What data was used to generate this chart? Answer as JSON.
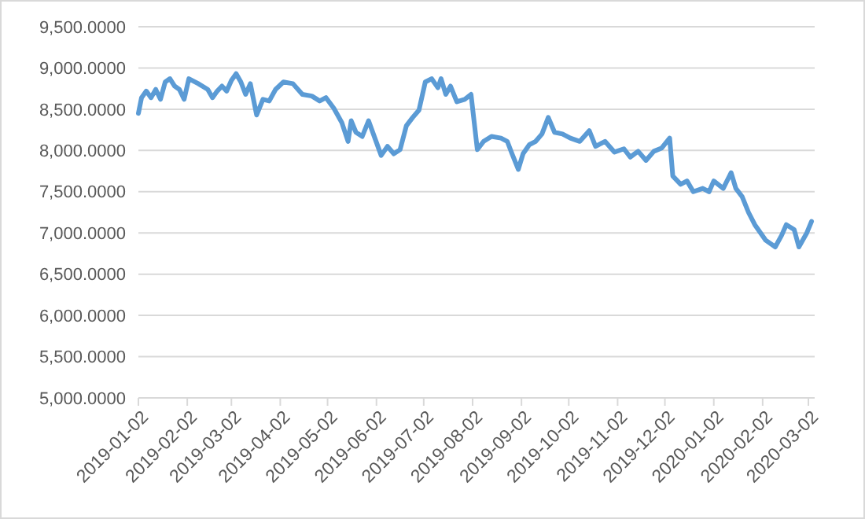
{
  "chart_data": {
    "type": "line",
    "x": [
      "2019-01-02",
      "2019-01-04",
      "2019-01-07",
      "2019-01-10",
      "2019-01-13",
      "2019-01-16",
      "2019-01-19",
      "2019-01-22",
      "2019-01-25",
      "2019-01-28",
      "2019-01-31",
      "2019-02-03",
      "2019-02-09",
      "2019-02-15",
      "2019-02-18",
      "2019-02-21",
      "2019-02-24",
      "2019-02-27",
      "2019-03-02",
      "2019-03-05",
      "2019-03-08",
      "2019-03-11",
      "2019-03-14",
      "2019-03-18",
      "2019-03-22",
      "2019-03-26",
      "2019-03-30",
      "2019-04-04",
      "2019-04-10",
      "2019-04-16",
      "2019-04-22",
      "2019-04-27",
      "2019-05-01",
      "2019-05-06",
      "2019-05-11",
      "2019-05-15",
      "2019-05-17",
      "2019-05-20",
      "2019-05-24",
      "2019-05-28",
      "2019-06-01",
      "2019-06-05",
      "2019-06-09",
      "2019-06-13",
      "2019-06-17",
      "2019-06-21",
      "2019-06-25",
      "2019-06-29",
      "2019-07-03",
      "2019-07-07",
      "2019-07-11",
      "2019-07-13",
      "2019-07-16",
      "2019-07-19",
      "2019-07-23",
      "2019-07-28",
      "2019-08-01",
      "2019-08-05",
      "2019-08-09",
      "2019-08-14",
      "2019-08-20",
      "2019-08-24",
      "2019-08-27",
      "2019-08-31",
      "2019-09-03",
      "2019-09-07",
      "2019-09-11",
      "2019-09-15",
      "2019-09-19",
      "2019-09-23",
      "2019-09-28",
      "2019-10-03",
      "2019-10-09",
      "2019-10-15",
      "2019-10-19",
      "2019-10-25",
      "2019-10-31",
      "2019-11-06",
      "2019-11-10",
      "2019-11-15",
      "2019-11-20",
      "2019-11-25",
      "2019-11-30",
      "2019-12-05",
      "2019-12-07",
      "2019-12-12",
      "2019-12-16",
      "2019-12-20",
      "2019-12-26",
      "2019-12-30",
      "2020-01-02",
      "2020-01-08",
      "2020-01-13",
      "2020-01-16",
      "2020-01-20",
      "2020-01-24",
      "2020-01-28",
      "2020-02-04",
      "2020-02-10",
      "2020-02-14",
      "2020-02-17",
      "2020-02-22",
      "2020-02-25",
      "2020-03-01",
      "2020-03-04"
    ],
    "series": [
      {
        "color": "#5b9bd5",
        "values": [
          8450,
          8640,
          8720,
          8640,
          8740,
          8620,
          8830,
          8870,
          8780,
          8740,
          8620,
          8870,
          8810,
          8740,
          8640,
          8720,
          8780,
          8720,
          8850,
          8930,
          8830,
          8680,
          8810,
          8430,
          8620,
          8600,
          8740,
          8830,
          8810,
          8680,
          8660,
          8600,
          8640,
          8510,
          8340,
          8110,
          8360,
          8220,
          8170,
          8360,
          8150,
          7940,
          8050,
          7960,
          8010,
          8300,
          8400,
          8490,
          8830,
          8870,
          8760,
          8870,
          8680,
          8780,
          8590,
          8620,
          8680,
          8010,
          8110,
          8170,
          8150,
          8110,
          7960,
          7770,
          7960,
          8070,
          8110,
          8200,
          8400,
          8220,
          8200,
          8150,
          8110,
          8240,
          8050,
          8110,
          7980,
          8020,
          7920,
          7990,
          7880,
          7990,
          8030,
          8150,
          7690,
          7590,
          7630,
          7500,
          7540,
          7500,
          7630,
          7540,
          7730,
          7540,
          7440,
          7250,
          7100,
          6910,
          6830,
          6970,
          7100,
          7040,
          6830,
          7000,
          7140
        ]
      }
    ],
    "xlim": [
      "2019-01-02",
      "2020-03-06"
    ],
    "xticks": [
      "2019-01-02",
      "2019-02-02",
      "2019-03-02",
      "2019-04-02",
      "2019-05-02",
      "2019-06-02",
      "2019-07-02",
      "2019-08-02",
      "2019-09-02",
      "2019-10-02",
      "2019-11-02",
      "2019-12-02",
      "2020-01-02",
      "2020-02-02",
      "2020-03-02"
    ],
    "ylim": [
      5000,
      9500
    ],
    "yticks": [
      {
        "value": 5000,
        "label": "5,000.0000"
      },
      {
        "value": 5500,
        "label": "5,500.0000"
      },
      {
        "value": 6000,
        "label": "6,000.0000"
      },
      {
        "value": 6500,
        "label": "6,500.0000"
      },
      {
        "value": 7000,
        "label": "7,000.0000"
      },
      {
        "value": 7500,
        "label": "7,500.0000"
      },
      {
        "value": 8000,
        "label": "8,000.0000"
      },
      {
        "value": 8500,
        "label": "8,500.0000"
      },
      {
        "value": 9000,
        "label": "9,000.0000"
      },
      {
        "value": 9500,
        "label": "9,500.0000"
      }
    ],
    "grid": "y",
    "marker": "none",
    "line_style": "solid"
  }
}
